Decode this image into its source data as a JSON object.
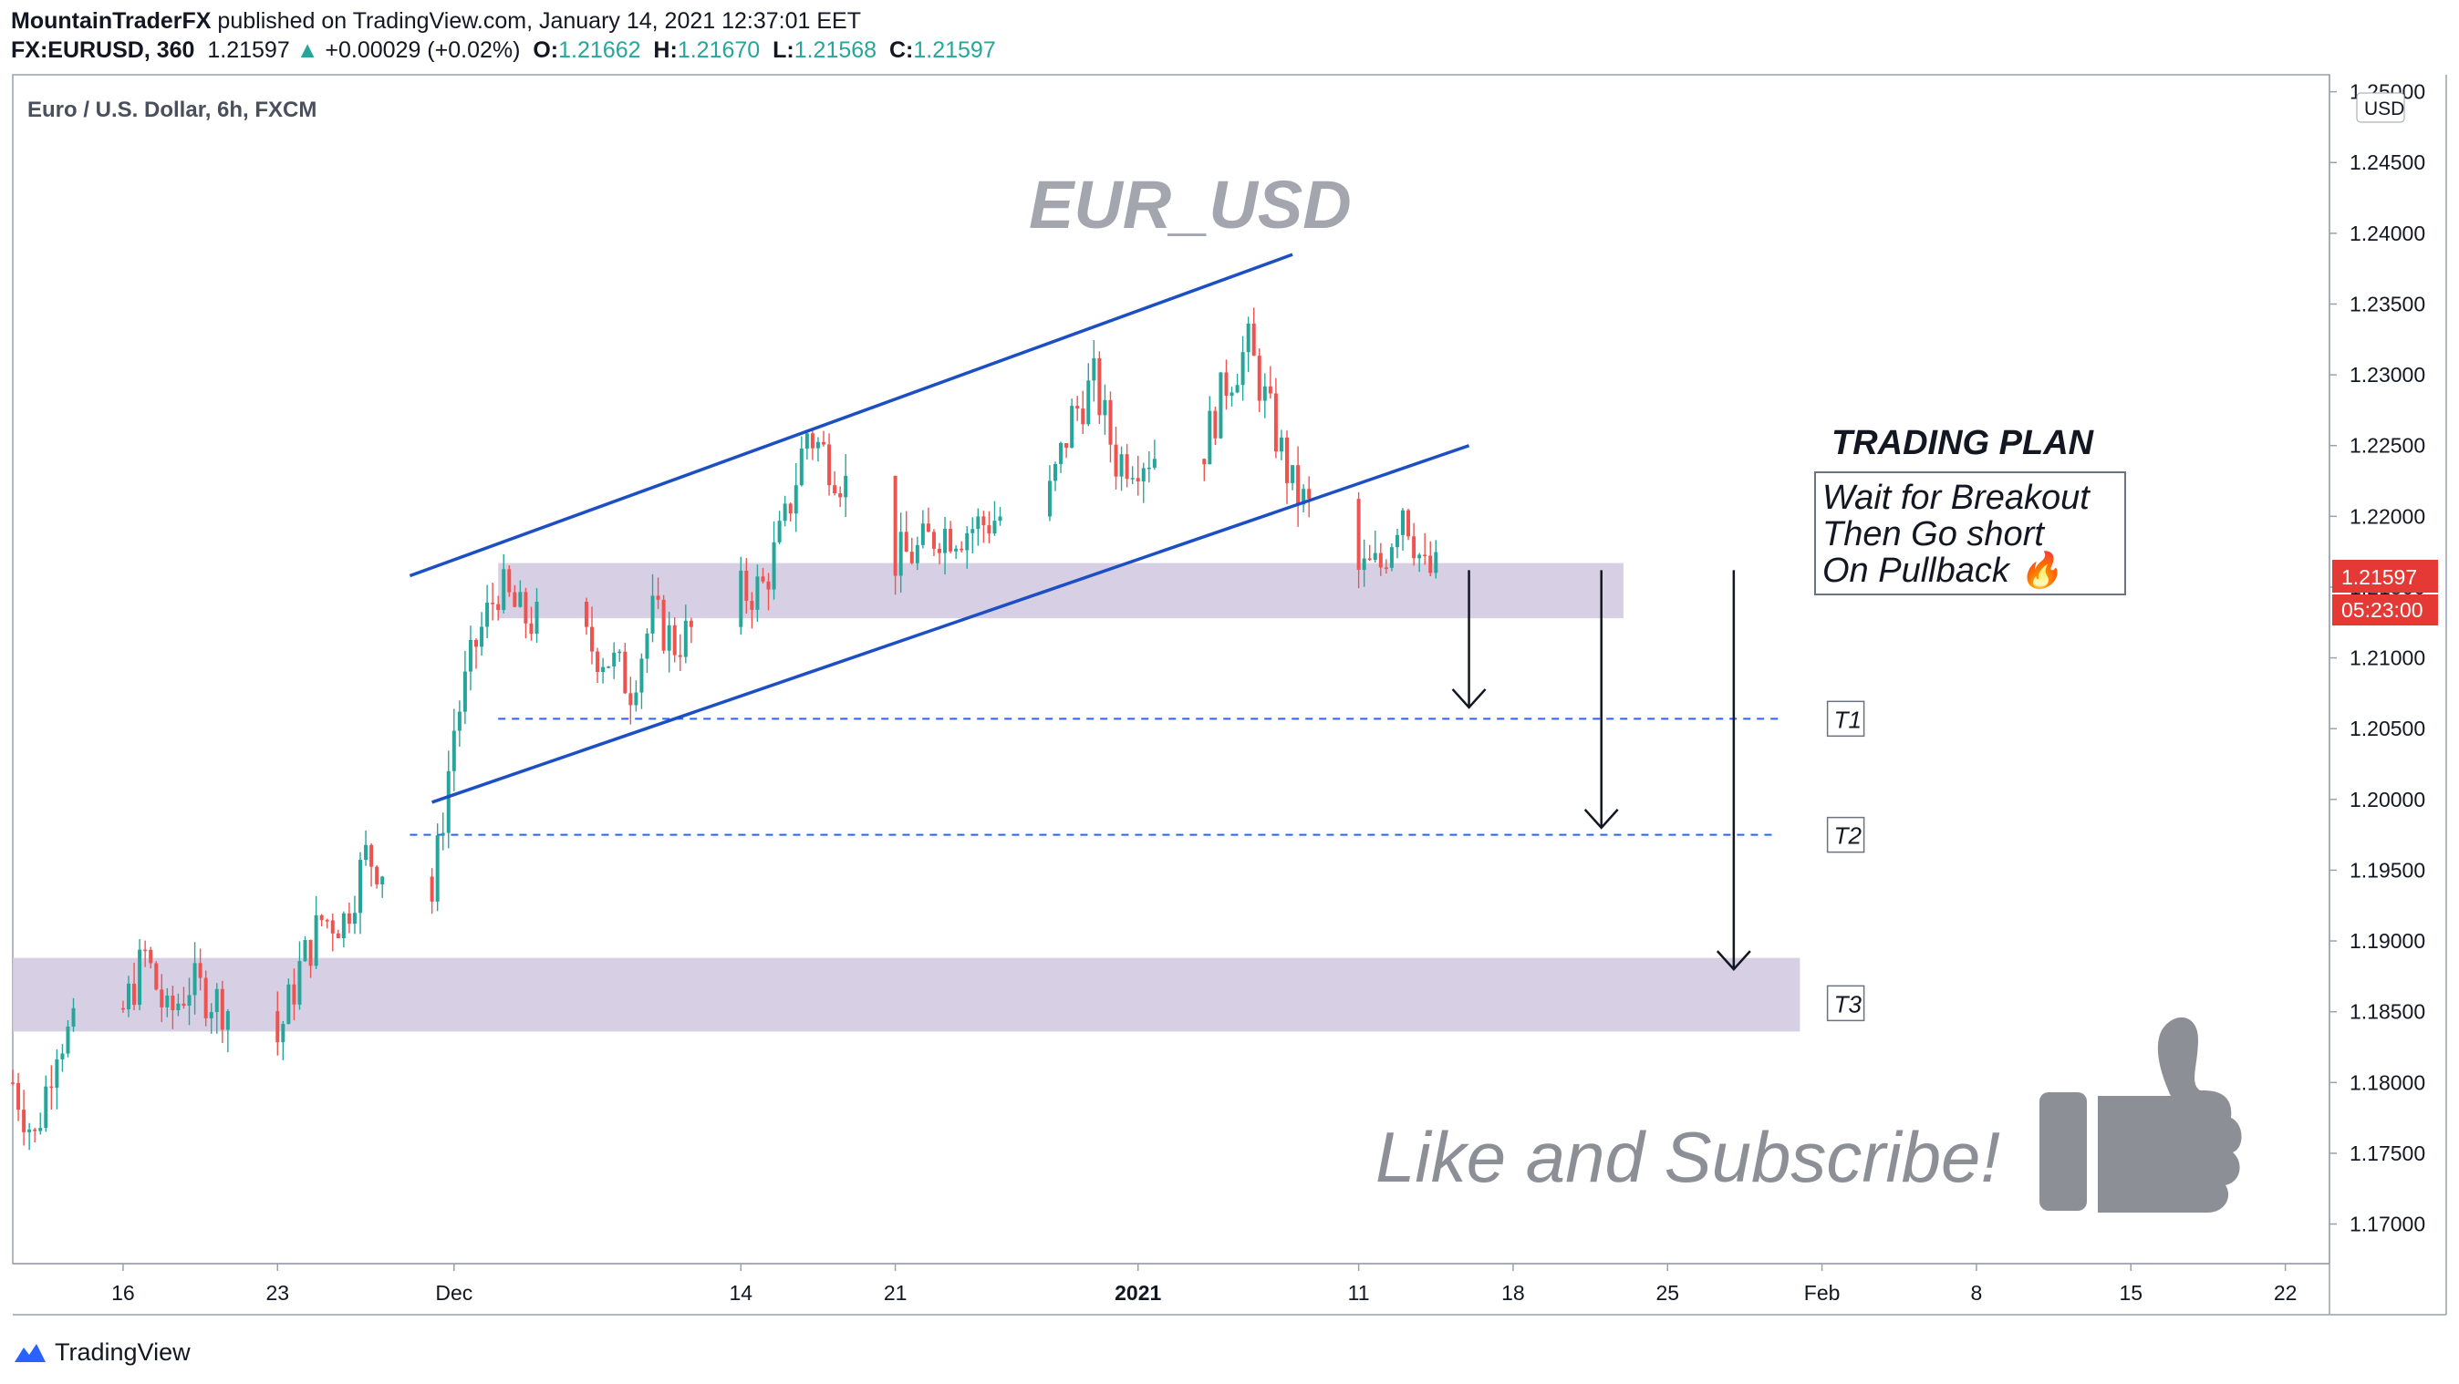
{
  "header": {
    "author": "MountainTraderFX",
    "published_text": "published on TradingView.com, January 14, 2021 12:37:01 EET",
    "symbol": "FX:EURUSD, 360",
    "last": "1.21597",
    "change_arrow": "▲",
    "change": "+0.00029 (+0.02%)",
    "o_label": "O:",
    "o_value": "1.21662",
    "h_label": "H:",
    "h_value": "1.21670",
    "l_label": "L:",
    "l_value": "1.21568",
    "c_label": "C:",
    "c_value": "1.21597"
  },
  "footer": {
    "brand": "TradingView",
    "logo_icon": "tradingview-logo-icon"
  },
  "colors": {
    "up": "#26a69a",
    "down": "#ef5350",
    "channel": "#1d4fc4",
    "zone": "#d0c8e0",
    "target_line": "#2962ff",
    "price_tag": "#e53935",
    "background": "#ffffff"
  },
  "chart_data": {
    "type": "candlestick",
    "title": "Euro / U.S. Dollar, 6h, FXCM",
    "watermark": "EUR_USD",
    "currency_label": "USD",
    "y_ticks": [
      "1.25000",
      "1.24500",
      "1.24000",
      "1.23500",
      "1.23000",
      "1.22500",
      "1.22000",
      "1.21500",
      "1.21000",
      "1.20500",
      "1.20000",
      "1.19500",
      "1.19000",
      "1.18500",
      "1.18000",
      "1.17500",
      "1.17000"
    ],
    "ylim": [
      1.1672,
      1.2512
    ],
    "x_ticks": [
      {
        "label": "16",
        "date": "2020-11-16"
      },
      {
        "label": "23",
        "date": "2020-11-23"
      },
      {
        "label": "Dec",
        "date": "2020-12-01"
      },
      {
        "label": "14",
        "date": "2020-12-14"
      },
      {
        "label": "21",
        "date": "2020-12-21"
      },
      {
        "label": "2021",
        "date": "2021-01-01",
        "bold": true
      },
      {
        "label": "11",
        "date": "2021-01-11"
      },
      {
        "label": "18",
        "date": "2021-01-18"
      },
      {
        "label": "25",
        "date": "2021-01-25"
      },
      {
        "label": "Feb",
        "date": "2021-02-01"
      },
      {
        "label": "8",
        "date": "2021-02-08"
      },
      {
        "label": "15",
        "date": "2021-02-15"
      },
      {
        "label": "22",
        "date": "2021-02-22"
      }
    ],
    "xlim": [
      "2020-11-11",
      "2021-02-24"
    ],
    "price_path": [
      [
        "2020-11-11",
        1.18
      ],
      [
        "2020-11-12",
        1.176
      ],
      [
        "2020-11-13",
        1.183
      ],
      [
        "2020-11-16",
        1.185
      ],
      [
        "2020-11-17",
        1.189
      ],
      [
        "2020-11-18",
        1.1845
      ],
      [
        "2020-11-19",
        1.187
      ],
      [
        "2020-11-20",
        1.186
      ],
      [
        "2020-11-23",
        1.183
      ],
      [
        "2020-11-24",
        1.188
      ],
      [
        "2020-11-25",
        1.1915
      ],
      [
        "2020-11-26",
        1.1915
      ],
      [
        "2020-11-27",
        1.196
      ],
      [
        "2020-11-30",
        1.193
      ],
      [
        "2020-12-01",
        1.205
      ],
      [
        "2020-12-02",
        1.211
      ],
      [
        "2020-12-03",
        1.215
      ],
      [
        "2020-12-04",
        1.213
      ],
      [
        "2020-12-07",
        1.211
      ],
      [
        "2020-12-08",
        1.21
      ],
      [
        "2020-12-09",
        1.208
      ],
      [
        "2020-12-10",
        1.213
      ],
      [
        "2020-12-11",
        1.211
      ],
      [
        "2020-12-14",
        1.2145
      ],
      [
        "2020-12-15",
        1.215
      ],
      [
        "2020-12-16",
        1.2195
      ],
      [
        "2020-12-17",
        1.226
      ],
      [
        "2020-12-18",
        1.224
      ],
      [
        "2020-12-21",
        1.217
      ],
      [
        "2020-12-22",
        1.2175
      ],
      [
        "2020-12-23",
        1.219
      ],
      [
        "2020-12-24",
        1.219
      ],
      [
        "2020-12-25",
        1.2195
      ],
      [
        "2020-12-28",
        1.2215
      ],
      [
        "2020-12-29",
        1.227
      ],
      [
        "2020-12-30",
        1.2295
      ],
      [
        "2020-12-31",
        1.224
      ],
      [
        "2021-01-04",
        1.225
      ],
      [
        "2021-01-05",
        1.2295
      ],
      [
        "2021-01-06",
        1.232
      ],
      [
        "2021-01-07",
        1.227
      ],
      [
        "2021-01-08",
        1.222
      ],
      [
        "2021-01-11",
        1.216
      ],
      [
        "2021-01-12",
        1.2165
      ],
      [
        "2021-01-13",
        1.221
      ],
      [
        "2021-01-14",
        1.216
      ]
    ],
    "last_price": "1.21597",
    "countdown": "05:23:00",
    "zones": [
      {
        "from": "2020-12-03",
        "to": "2021-01-23",
        "low": 1.2128,
        "high": 1.2167
      },
      {
        "from": "2020-11-11",
        "to": "2021-01-31",
        "low": 1.1836,
        "high": 1.1888
      }
    ],
    "channel_lines": [
      {
        "x1": "2020-11-29",
        "y1": 1.2158,
        "x2": "2021-01-08",
        "y2": 1.2385
      },
      {
        "x1": "2020-11-30",
        "y1": 1.1998,
        "x2": "2021-01-16",
        "y2": 1.225
      }
    ],
    "targets": [
      {
        "name": "T1",
        "price": 1.2057,
        "from": "2020-12-03"
      },
      {
        "name": "T2",
        "price": 1.1975,
        "from": "2020-11-29"
      },
      {
        "name": "T3",
        "price": 1.1856
      }
    ],
    "arrows": [
      {
        "x": "2021-01-16",
        "from": 1.2162,
        "to": 1.2065
      },
      {
        "x": "2021-01-22",
        "from": 1.2162,
        "to": 1.198
      },
      {
        "x": "2021-01-28",
        "from": 1.2162,
        "to": 1.188
      }
    ],
    "annotations": {
      "plan_title": "TRADING PLAN",
      "plan_lines": [
        "Wait for Breakout",
        "Then Go short",
        "On Pullback 🔥"
      ],
      "cta": "Like and Subscribe!",
      "cta_icon": "thumbs-up-icon"
    }
  }
}
